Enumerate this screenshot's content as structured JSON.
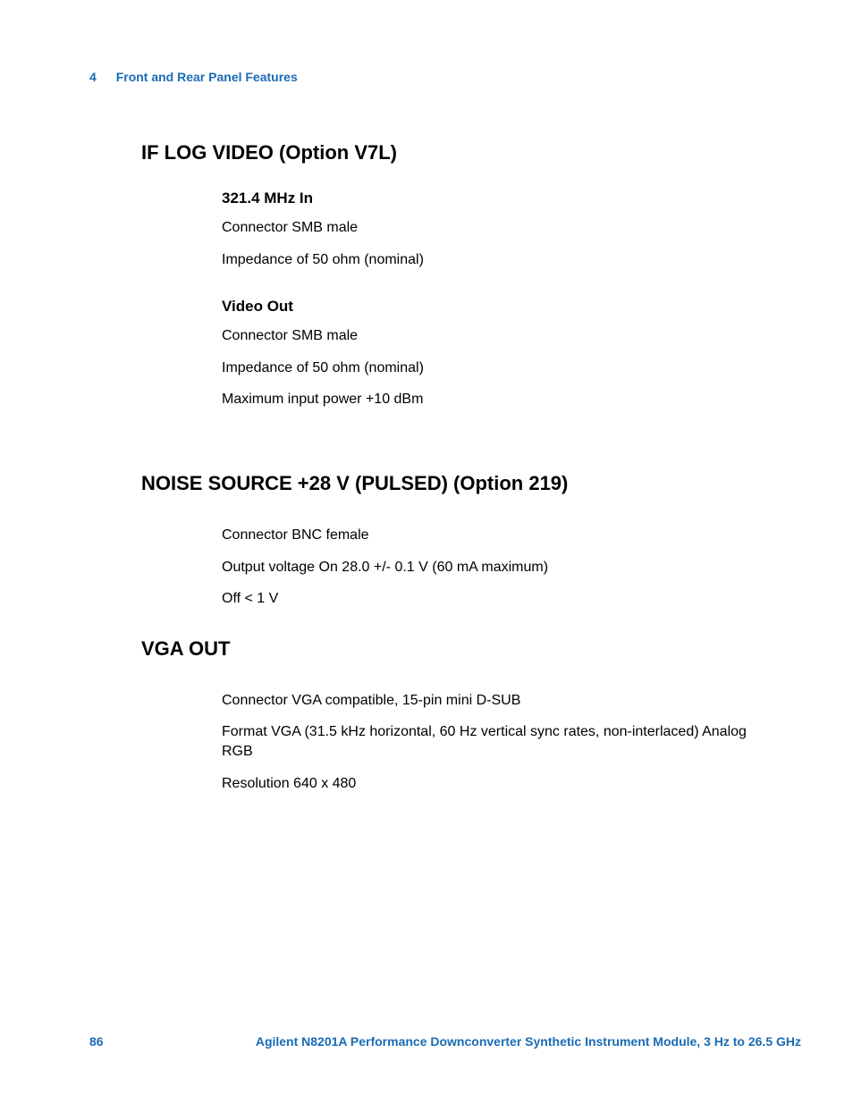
{
  "header": {
    "chapter_num": "4",
    "chapter_title": "Front and Rear Panel Features"
  },
  "sections": [
    {
      "title": "IF LOG VIDEO (Option V7L)",
      "subs": [
        {
          "title": "321.4 MHz In",
          "lines": [
            "Connector SMB male",
            "Impedance of 50 ohm (nominal)"
          ]
        },
        {
          "title": "Video Out",
          "lines": [
            "Connector SMB male",
            "Impedance of 50 ohm (nominal)",
            "Maximum input power +10 dBm"
          ]
        }
      ]
    },
    {
      "title": "NOISE SOURCE +28 V (PULSED) (Option 219)",
      "subs": [
        {
          "title": "",
          "lines": [
            "Connector BNC female",
            "Output voltage On 28.0 +/- 0.1 V (60 mA maximum)",
            "Off < 1 V"
          ]
        }
      ]
    },
    {
      "title": "VGA OUT",
      "subs": [
        {
          "title": "",
          "lines": [
            "Connector VGA compatible, 15-pin mini D-SUB",
            "Format VGA (31.5 kHz horizontal, 60 Hz vertical sync rates, non-interlaced) Analog RGB",
            "Resolution 640 x 480"
          ]
        }
      ]
    }
  ],
  "footer": {
    "page_num": "86",
    "doc_title": "Agilent N8201A Performance Downconverter Synthetic Instrument Module, 3 Hz to 26.5 GHz"
  },
  "colors": {
    "link_blue": "#1a6bb5",
    "text": "#000000",
    "bg": "#ffffff"
  },
  "typography": {
    "h1_size": 22,
    "h2_size": 17,
    "body_size": 16,
    "header_size": 14,
    "footer_size": 14
  }
}
